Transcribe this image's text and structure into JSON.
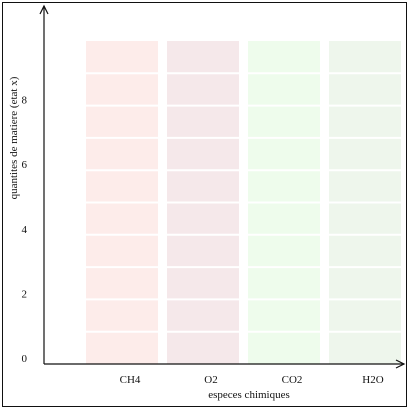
{
  "chart_data": {
    "type": "bar",
    "title": "",
    "xlabel": "especes chimiques",
    "ylabel": "quantites de matiere (etat x)",
    "categories": [
      "CH4",
      "O2",
      "CO2",
      "H2O"
    ],
    "values": [
      10,
      10,
      10,
      10
    ],
    "ylim": [
      0,
      10
    ],
    "yticks": [
      0,
      2,
      4,
      6,
      8
    ],
    "grid": false,
    "segments_per_bar": 10,
    "colors": {
      "CH4": "#fdecea",
      "O2": "#f5e8ea",
      "CO2": "#eefcec",
      "H2O": "#eef6ec"
    },
    "axis_color": "#111111"
  }
}
